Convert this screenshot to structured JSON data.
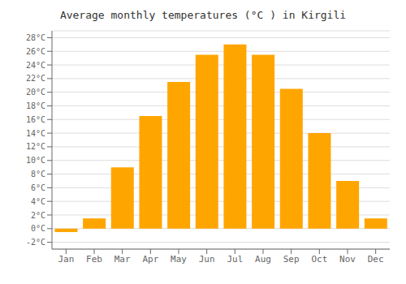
{
  "chart_data": {
    "type": "bar",
    "title": "Average monthly temperatures (°C ) in Kirgili",
    "categories": [
      "Jan",
      "Feb",
      "Mar",
      "Apr",
      "May",
      "Jun",
      "Jul",
      "Aug",
      "Sep",
      "Oct",
      "Nov",
      "Dec"
    ],
    "values": [
      -0.5,
      1.5,
      9.0,
      16.5,
      21.5,
      25.5,
      27.0,
      25.5,
      20.5,
      14.0,
      7.0,
      1.5
    ],
    "color": "#FFA500",
    "ylim": [
      -3,
      29
    ],
    "yticks": [
      {
        "value": -2,
        "label": "-2°C"
      },
      {
        "value": 0,
        "label": "0°C"
      },
      {
        "value": 2,
        "label": "2°C"
      },
      {
        "value": 4,
        "label": "4°C"
      },
      {
        "value": 6,
        "label": "6°C"
      },
      {
        "value": 8,
        "label": "8°C"
      },
      {
        "value": 10,
        "label": "10°C"
      },
      {
        "value": 12,
        "label": "12°C"
      },
      {
        "value": 14,
        "label": "14°C"
      },
      {
        "value": 16,
        "label": "16°C"
      },
      {
        "value": 18,
        "label": "18°C"
      },
      {
        "value": 20,
        "label": "20°C"
      },
      {
        "value": 22,
        "label": "22°C"
      },
      {
        "value": 24,
        "label": "24°C"
      },
      {
        "value": 26,
        "label": "26°C"
      },
      {
        "value": 28,
        "label": "28°C"
      }
    ],
    "grid": true
  }
}
